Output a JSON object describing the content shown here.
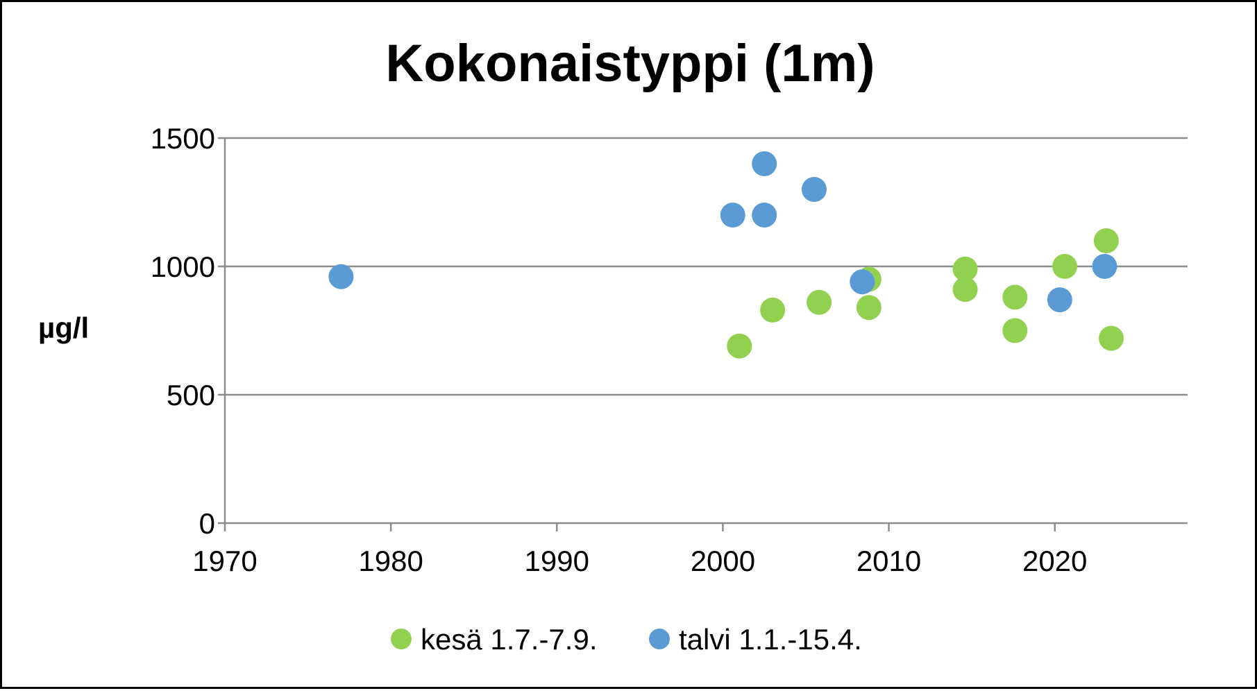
{
  "chart_data": {
    "type": "scatter",
    "title": "Kokonaistyppi (1m)",
    "xlabel": "",
    "ylabel": "µg/l",
    "xlim": [
      1970,
      2028
    ],
    "ylim": [
      0,
      1500
    ],
    "x_ticks": [
      1970,
      1980,
      1990,
      2000,
      2010,
      2020
    ],
    "y_ticks": [
      0,
      500,
      1000,
      1500
    ],
    "grid": "horizontal",
    "legend_position": "bottom",
    "series": [
      {
        "name": "kesä 1.7.-7.9.",
        "color": "#92d050",
        "points": [
          {
            "x": 2001.0,
            "y": 690
          },
          {
            "x": 2003.0,
            "y": 830
          },
          {
            "x": 2005.8,
            "y": 860
          },
          {
            "x": 2008.8,
            "y": 950
          },
          {
            "x": 2008.8,
            "y": 840
          },
          {
            "x": 2014.6,
            "y": 990
          },
          {
            "x": 2014.6,
            "y": 910
          },
          {
            "x": 2017.6,
            "y": 880
          },
          {
            "x": 2017.6,
            "y": 750
          },
          {
            "x": 2020.6,
            "y": 1000
          },
          {
            "x": 2023.1,
            "y": 1100
          },
          {
            "x": 2023.4,
            "y": 720
          }
        ]
      },
      {
        "name": "talvi 1.1.-15.4.",
        "color": "#5b9bd5",
        "points": [
          {
            "x": 1977.0,
            "y": 960
          },
          {
            "x": 2000.6,
            "y": 1200
          },
          {
            "x": 2002.5,
            "y": 1400
          },
          {
            "x": 2002.5,
            "y": 1200
          },
          {
            "x": 2005.5,
            "y": 1300
          },
          {
            "x": 2008.4,
            "y": 940
          },
          {
            "x": 2020.3,
            "y": 870
          },
          {
            "x": 2023.0,
            "y": 1000
          }
        ]
      }
    ]
  }
}
